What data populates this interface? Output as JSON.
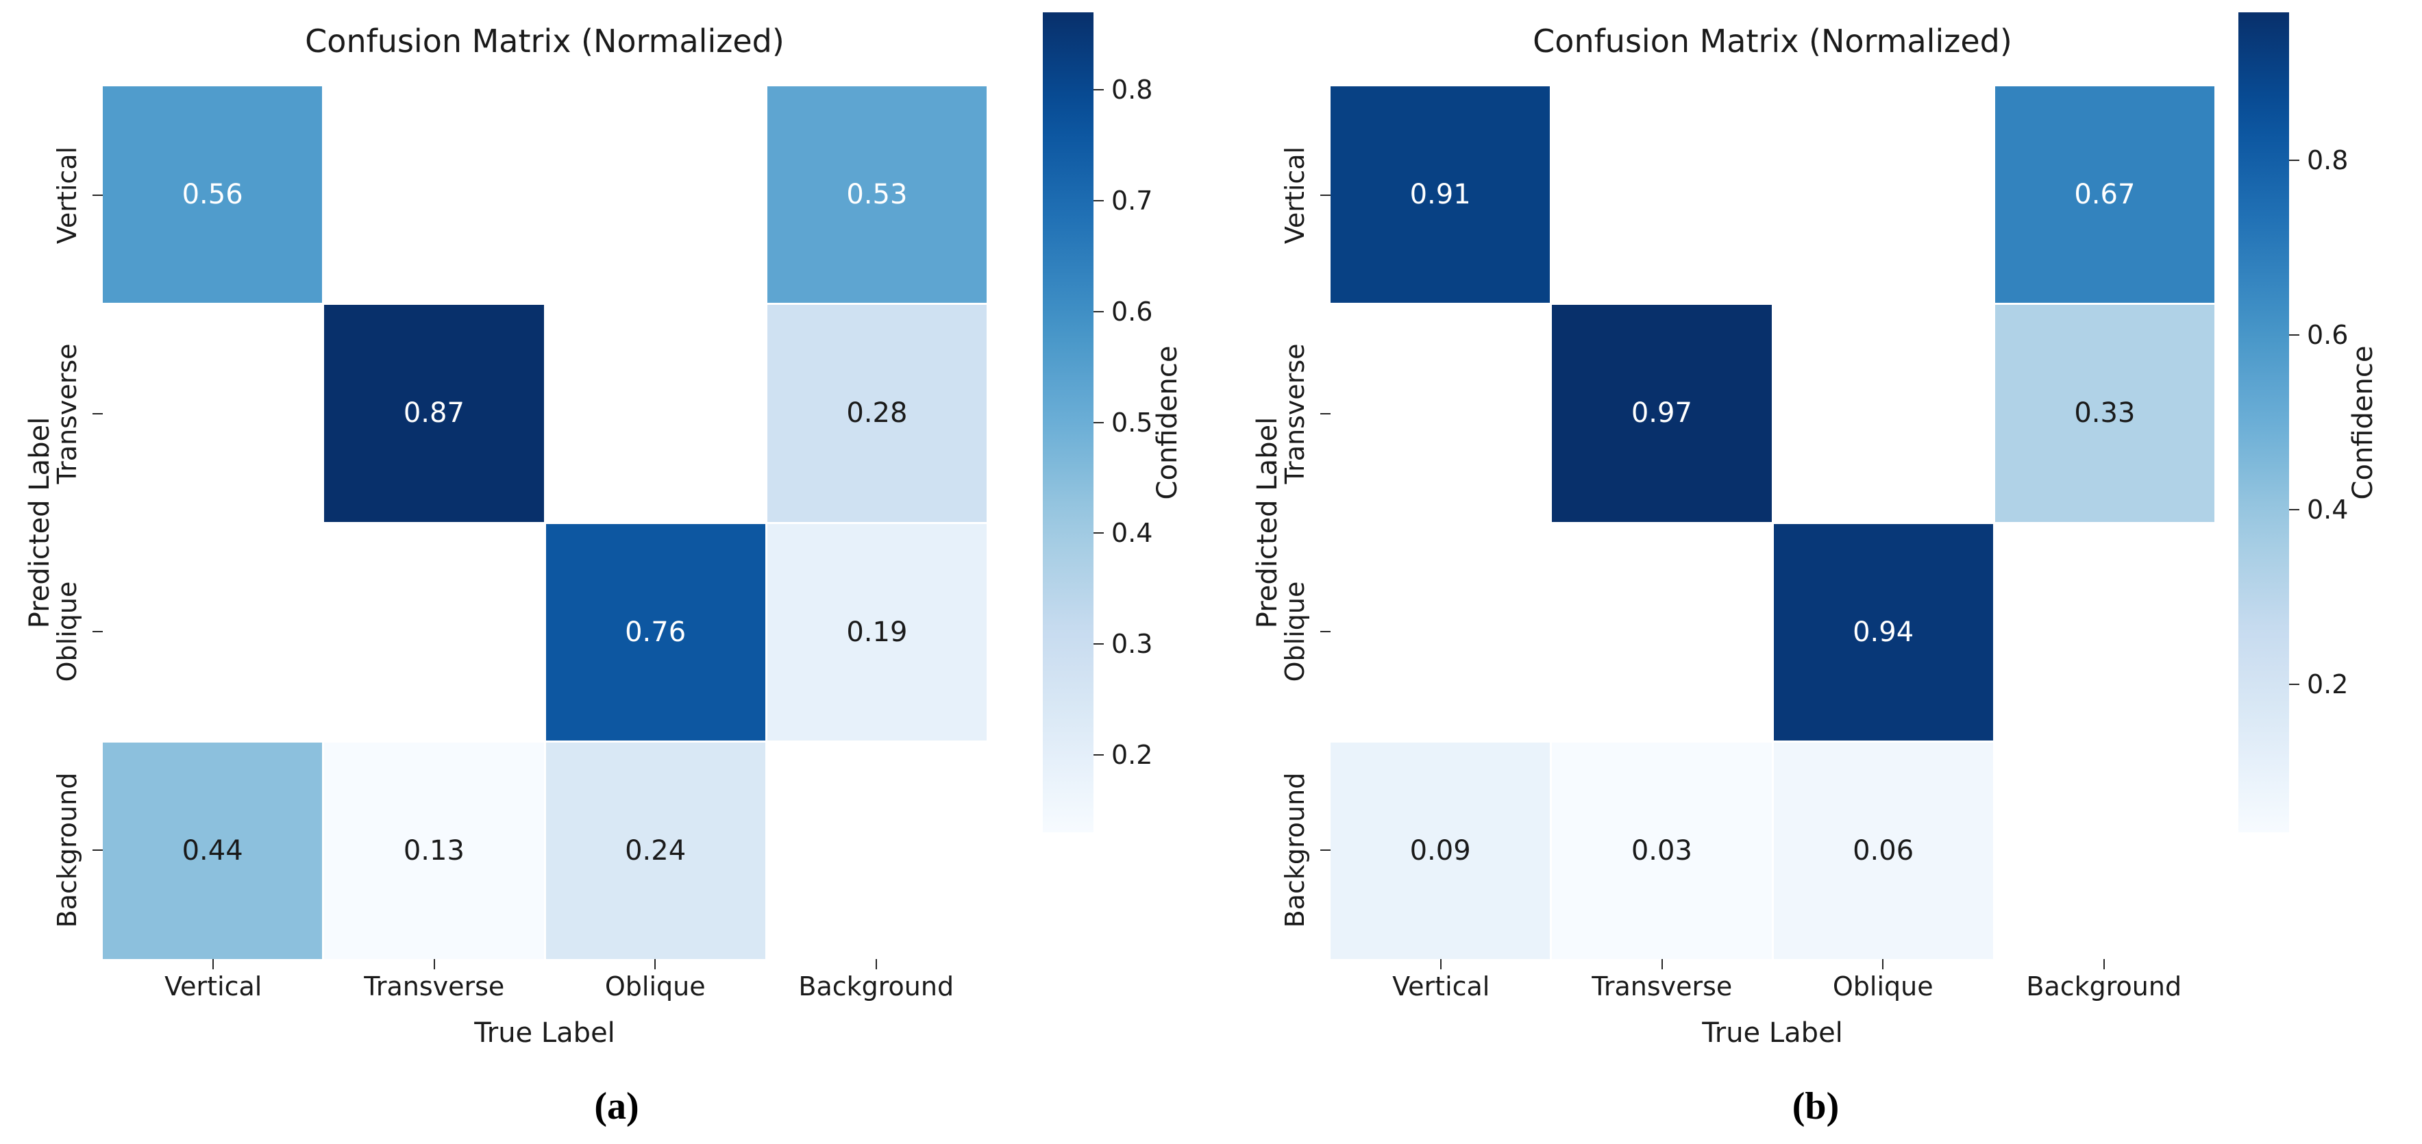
{
  "chart_data": [
    {
      "type": "heatmap",
      "panel": "a",
      "caption": "(a)",
      "title": "Confusion Matrix (Normalized)",
      "xlabel": "True Label",
      "ylabel": "Predicted Label",
      "x_categories": [
        "Vertical",
        "Transverse",
        "Oblique",
        "Background"
      ],
      "y_categories": [
        "Vertical",
        "Transverse",
        "Oblique",
        "Background"
      ],
      "matrix": [
        [
          0.56,
          null,
          null,
          0.53
        ],
        [
          null,
          0.87,
          null,
          0.28
        ],
        [
          null,
          null,
          0.76,
          0.19
        ],
        [
          0.44,
          0.13,
          0.24,
          null
        ]
      ],
      "empty_cells_rendered_white": true,
      "colormap": "Blues",
      "colorbar": {
        "label": "Confidence",
        "vmin": 0.13,
        "vmax": 0.87,
        "ticks": [
          0.8,
          0.7,
          0.6,
          0.5,
          0.4,
          0.3,
          0.2
        ]
      },
      "legend_position": "right-colorbar",
      "grid": false
    },
    {
      "type": "heatmap",
      "panel": "b",
      "caption": "(b)",
      "title": "Confusion Matrix (Normalized)",
      "xlabel": "True Label",
      "ylabel": "Predicted Label",
      "x_categories": [
        "Vertical",
        "Transverse",
        "Oblique",
        "Background"
      ],
      "y_categories": [
        "Vertical",
        "Transverse",
        "Oblique",
        "Background"
      ],
      "matrix": [
        [
          0.91,
          null,
          null,
          0.67
        ],
        [
          null,
          0.97,
          null,
          0.33
        ],
        [
          null,
          null,
          0.94,
          null
        ],
        [
          0.09,
          0.03,
          0.06,
          null
        ]
      ],
      "empty_cells_rendered_white": true,
      "colormap": "Blues",
      "colorbar": {
        "label": "Confidence",
        "vmin": 0.03,
        "vmax": 0.97,
        "ticks": [
          0.8,
          0.6,
          0.4,
          0.2
        ]
      },
      "legend_position": "right-colorbar",
      "grid": false
    }
  ],
  "colormap_blues_stops": [
    "#f7fbff",
    "#deebf7",
    "#c6dbef",
    "#9ecae1",
    "#6baed6",
    "#4292c6",
    "#2171b5",
    "#08519c",
    "#08306b"
  ],
  "colors": {
    "background": "#ffffff",
    "axis_text": "#1a1a1a",
    "annotation_on_dark": "#ffffff",
    "annotation_on_light": "#1a1a1a",
    "tick_mark": "#262626"
  }
}
